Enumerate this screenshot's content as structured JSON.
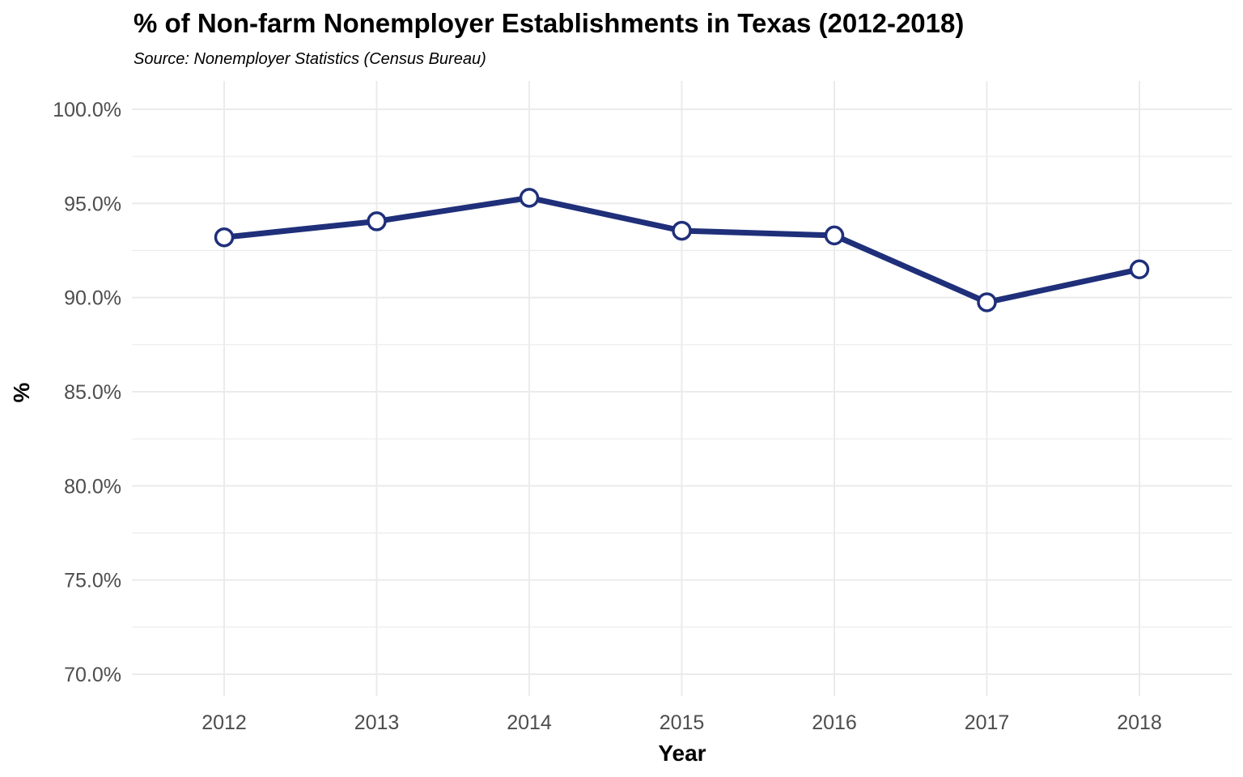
{
  "chart_data": {
    "type": "line",
    "title": "% of Non-farm Nonemployer Establishments in Texas (2012-2018)",
    "subtitle": "Source: Nonemployer Statistics (Census Bureau)",
    "xlabel": "Year",
    "ylabel": "%",
    "x": [
      "2012",
      "2013",
      "2014",
      "2015",
      "2016",
      "2017",
      "2018"
    ],
    "series": [
      {
        "values": [
          93.2,
          94.05,
          95.3,
          93.55,
          93.3,
          89.75,
          91.5
        ]
      }
    ],
    "ylim": [
      70,
      100
    ],
    "yticks": [
      "70.0%",
      "75.0%",
      "80.0%",
      "85.0%",
      "90.0%",
      "95.0%",
      "100.0%"
    ],
    "grid": true,
    "line_color": "#1f2f7a",
    "marker_fill": "#ffffff"
  }
}
